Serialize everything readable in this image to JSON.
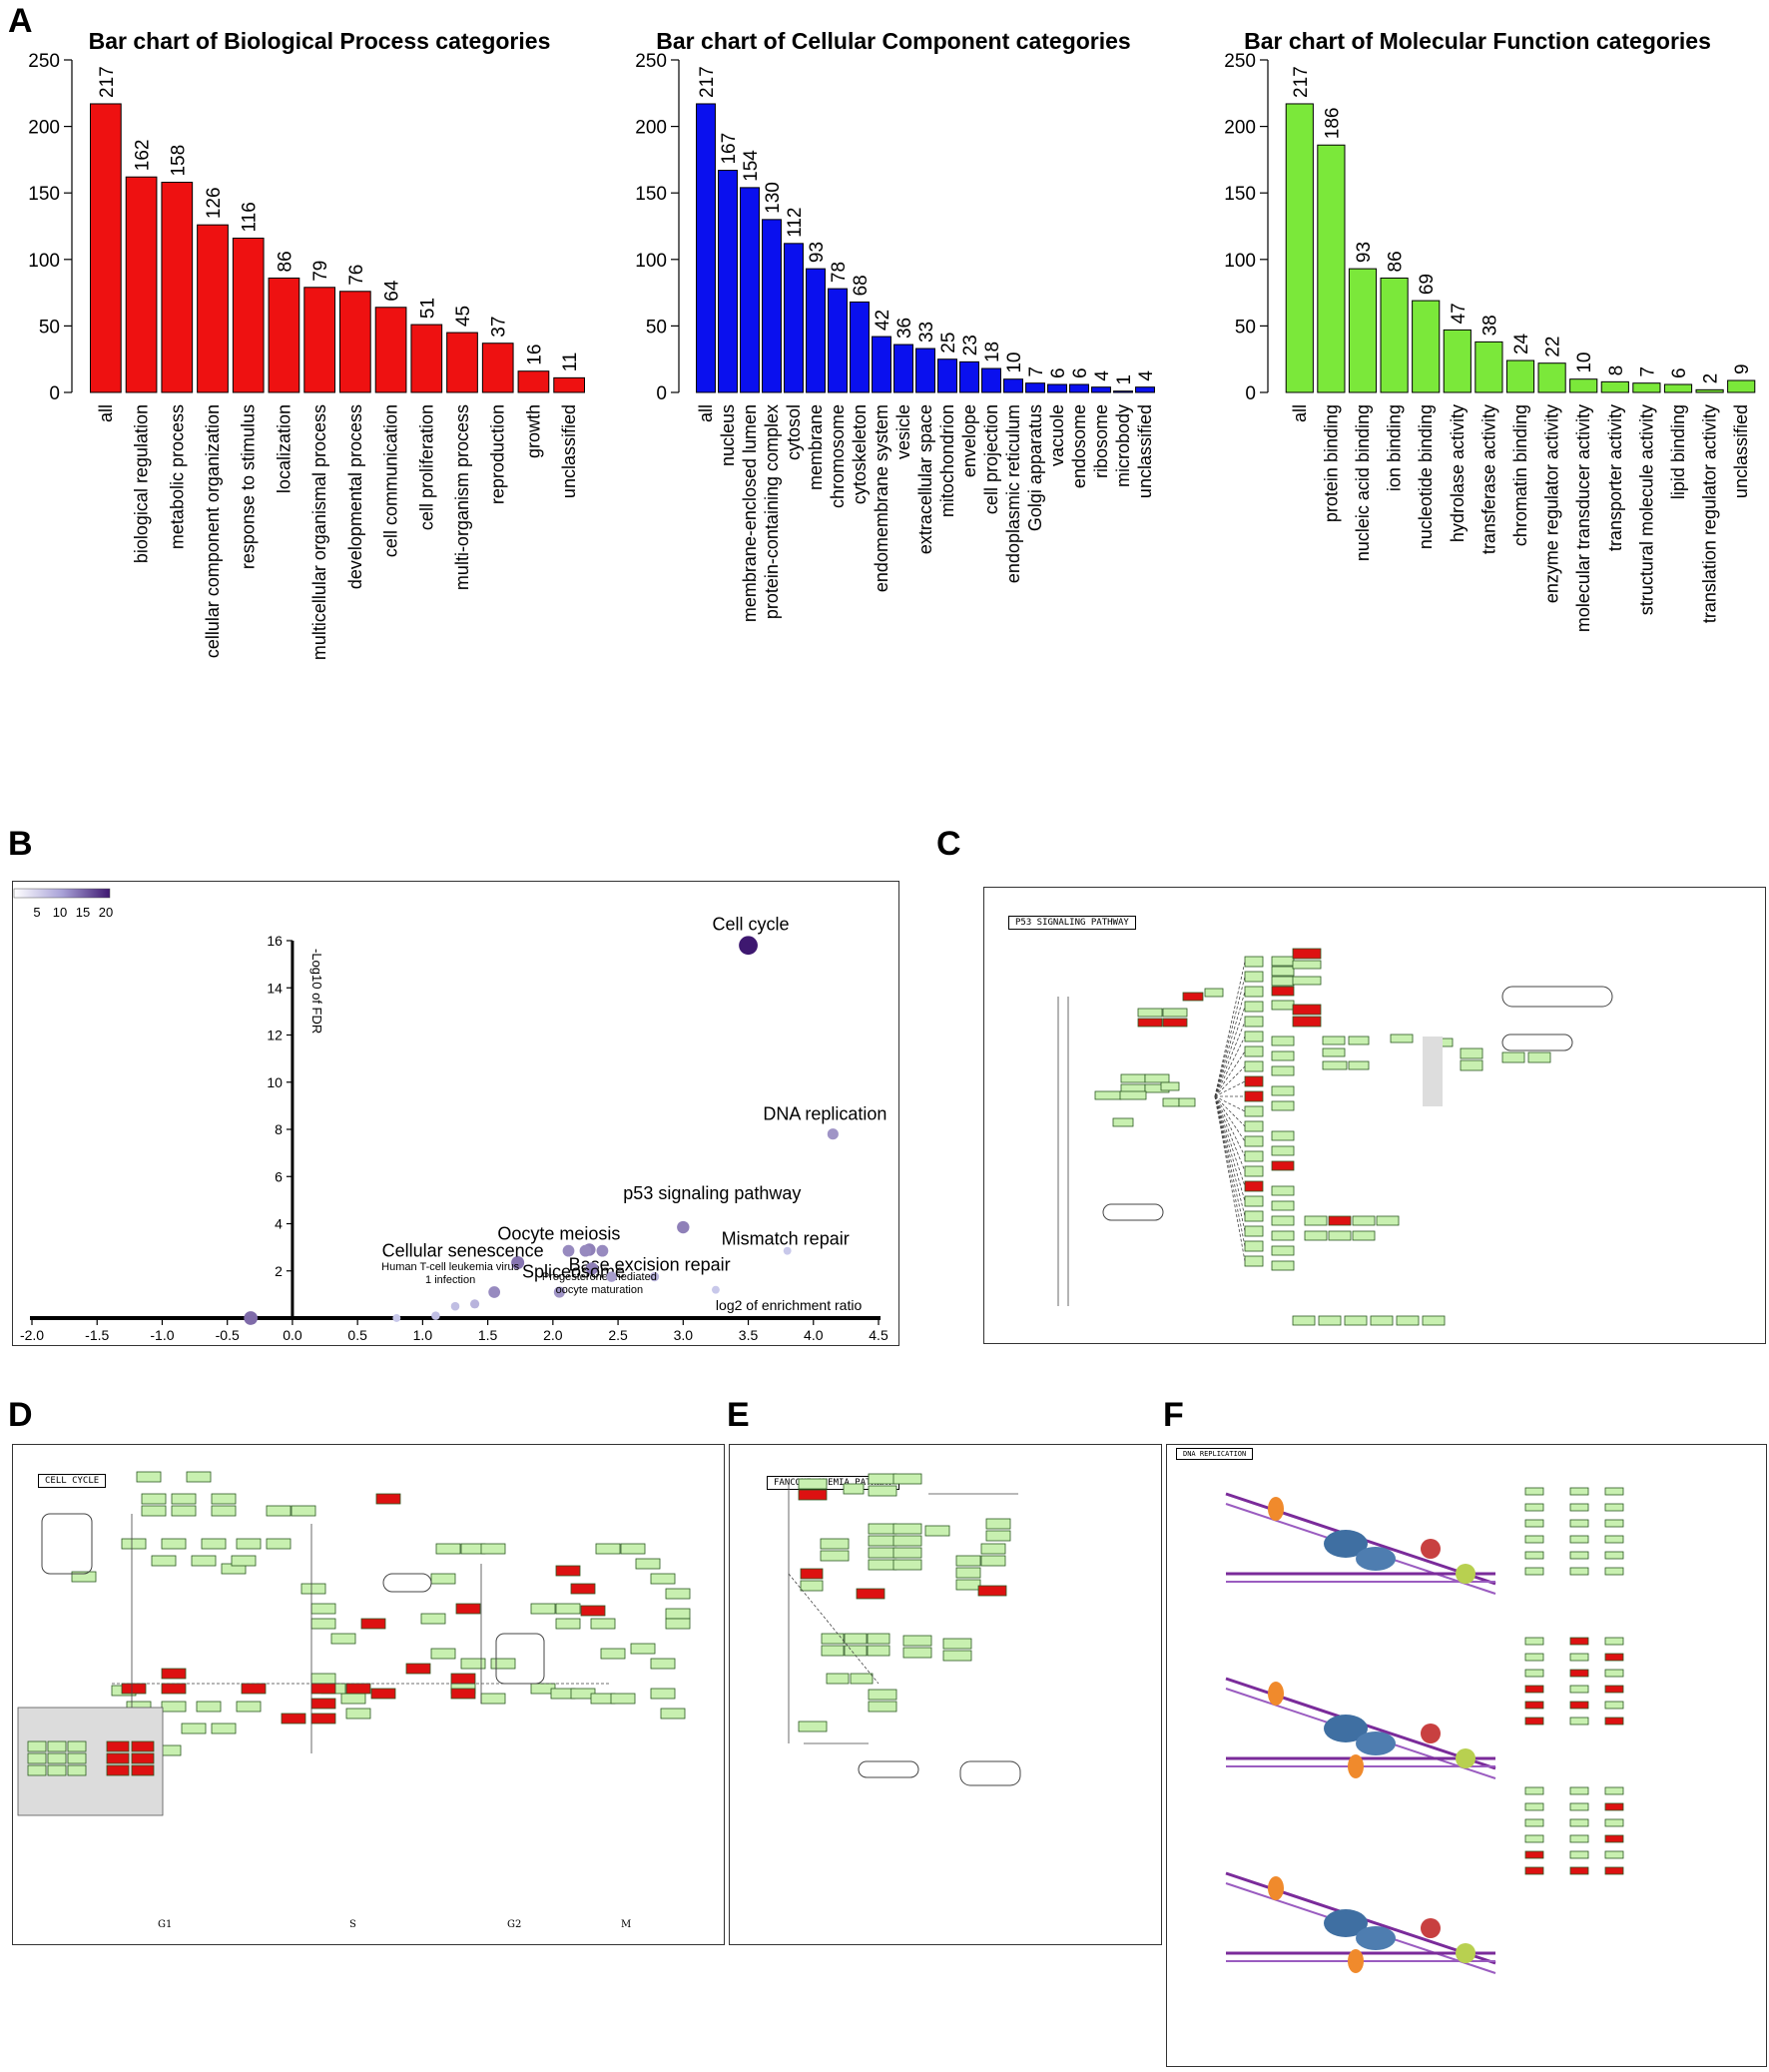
{
  "panels": {
    "A": "A",
    "B": "B",
    "C": "C",
    "D": "D",
    "E": "E",
    "F": "F"
  },
  "colors": {
    "bp": "#ee1111",
    "cc": "#0a10ee",
    "mf": "#7be83a",
    "node_green": "#c8f0b0",
    "node_red": "#dd1111",
    "bubble_low": "#c8c8ea",
    "bubble_high": "#3e1870"
  },
  "chart_data": [
    {
      "type": "bar",
      "title": "Bar chart of Biological Process categories",
      "categories": [
        "all",
        "biological regulation",
        "metabolic process",
        "cellular component organization",
        "response to stimulus",
        "localization",
        "multicellular organismal process",
        "developmental process",
        "cell communication",
        "cell proliferation",
        "multi-organism process",
        "reproduction",
        "growth",
        "unclassified"
      ],
      "values": [
        217,
        162,
        158,
        126,
        116,
        86,
        79,
        76,
        64,
        51,
        45,
        37,
        16,
        11
      ],
      "ylim": [
        0,
        250
      ],
      "yticks": [
        "0",
        "50",
        "100",
        "150",
        "200",
        "250"
      ],
      "color": "#ee1111"
    },
    {
      "type": "bar",
      "title": "Bar chart of Cellular Component categories",
      "categories": [
        "all",
        "nucleus",
        "membrane-enclosed lumen",
        "protein-containing complex",
        "cytosol",
        "membrane",
        "chromosome",
        "cytoskeleton",
        "endomembrane system",
        "vesicle",
        "extracellular space",
        "mitochondrion",
        "envelope",
        "cell projection",
        "endoplasmic reticulum",
        "Golgi apparatus",
        "vacuole",
        "endosome",
        "ribosome",
        "microbody",
        "unclassified"
      ],
      "values": [
        217,
        167,
        154,
        130,
        112,
        93,
        78,
        68,
        42,
        36,
        33,
        25,
        23,
        18,
        10,
        7,
        6,
        6,
        4,
        1,
        4
      ],
      "ylim": [
        0,
        250
      ],
      "yticks": [
        "0",
        "50",
        "100",
        "150",
        "200",
        "250"
      ],
      "color": "#0a10ee"
    },
    {
      "type": "bar",
      "title": "Bar chart of Molecular Function categories",
      "categories": [
        "all",
        "protein binding",
        "nucleic acid binding",
        "ion binding",
        "nucleotide binding",
        "hydrolase activity",
        "transferase activity",
        "chromatin binding",
        "enzyme regulator activity",
        "molecular transducer activity",
        "transporter activity",
        "structural molecule activity",
        "lipid binding",
        "translation regulator activity",
        "unclassified"
      ],
      "values": [
        217,
        186,
        93,
        86,
        69,
        47,
        38,
        24,
        22,
        10,
        8,
        7,
        6,
        2,
        9
      ],
      "ylim": [
        0,
        250
      ],
      "yticks": [
        "0",
        "50",
        "100",
        "150",
        "200",
        "250"
      ],
      "color": "#7be83a"
    },
    {
      "type": "scatter",
      "xlabel": "log2 of enrichment ratio",
      "ylabel": "-Log10 of FDR",
      "xlim": [
        -2.0,
        4.5
      ],
      "ylim": [
        0,
        16
      ],
      "xticks": [
        "-2.0",
        "-1.5",
        "-1.0",
        "-0.5",
        "0.0",
        "0.5",
        "1.0",
        "1.5",
        "2.0",
        "2.5",
        "3.0",
        "3.5",
        "4.0",
        "4.5"
      ],
      "yticks": [
        "2",
        "4",
        "6",
        "8",
        "10",
        "12",
        "14",
        "16"
      ],
      "legend_ticks": [
        "5",
        "10",
        "15",
        "20"
      ],
      "legend_position": "top-left",
      "points": [
        {
          "x": 3.5,
          "y": 15.8,
          "label": "Cell cycle",
          "size": 20
        },
        {
          "x": 4.15,
          "y": 7.8,
          "label": "DNA replication",
          "size": 8
        },
        {
          "x": 3.0,
          "y": 3.85,
          "label": "p53 signaling pathway",
          "size": 10
        },
        {
          "x": 3.8,
          "y": 2.85,
          "label": "Mismatch repair",
          "size": 3
        },
        {
          "x": 2.78,
          "y": 1.75,
          "label": "Base excision repair",
          "size": 5
        },
        {
          "x": 1.73,
          "y": 2.35,
          "label": "Cellular senescence",
          "size": 11
        },
        {
          "x": 2.28,
          "y": 2.9,
          "label": "Oocyte meiosis",
          "size": 10
        },
        {
          "x": 2.3,
          "y": 2.1,
          "label": "Spliceosome",
          "size": 10
        },
        {
          "x": 1.55,
          "y": 1.1,
          "label": "Human T-cell leukemia virus 1 infection",
          "size": 9
        },
        {
          "x": 2.05,
          "y": 1.1,
          "label": "Progesterone-mediated oocyte maturation",
          "size": 8
        },
        {
          "x": 3.25,
          "y": 1.2,
          "label": "",
          "size": 3
        },
        {
          "x": 2.12,
          "y": 2.85,
          "label": "",
          "size": 9
        },
        {
          "x": 2.25,
          "y": 2.85,
          "label": "",
          "size": 9
        },
        {
          "x": 2.38,
          "y": 2.85,
          "label": "",
          "size": 9
        },
        {
          "x": 2.45,
          "y": 1.75,
          "label": "",
          "size": 7
        },
        {
          "x": 1.25,
          "y": 0.5,
          "label": "",
          "size": 4
        },
        {
          "x": 1.4,
          "y": 0.6,
          "label": "",
          "size": 5
        },
        {
          "x": 1.1,
          "y": 0.1,
          "label": "",
          "size": 4
        },
        {
          "x": -0.32,
          "y": 0.0,
          "label": "",
          "size": 12
        },
        {
          "x": 0.8,
          "y": 0.0,
          "label": "",
          "size": 3
        }
      ]
    }
  ],
  "pathways": {
    "C": {
      "title": "P53 SIGNALING PATHWAY"
    },
    "D": {
      "title": "CELL CYCLE",
      "phases": [
        "G1",
        "S",
        "G2",
        "M"
      ]
    },
    "E": {
      "title": "FANCONI ANEMIA PATHWAY"
    },
    "F": {
      "title": "DNA REPLICATION"
    }
  }
}
